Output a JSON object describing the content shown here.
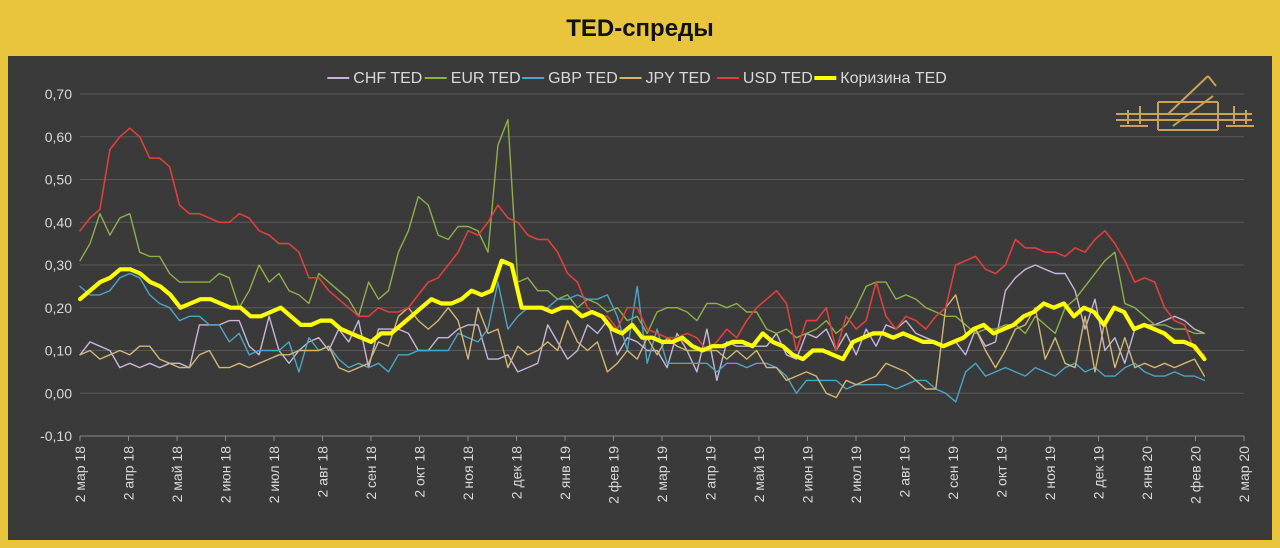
{
  "title": "TED-спреды",
  "colors": {
    "background": "#e8c53c",
    "plot_bg": "#3a3a3a",
    "axis_text": "#d9d9d9",
    "grid": "#5a5a5a"
  },
  "logo": {
    "icon": "castle-ornament-logo",
    "color": "#c9a25a"
  },
  "chart_data": {
    "type": "line",
    "title": "TED-спреды",
    "ylim": [
      -0.1,
      0.7
    ],
    "yticks": [
      "-0,10",
      "0,00",
      "0,10",
      "0,20",
      "0,30",
      "0,40",
      "0,50",
      "0,60",
      "0,70"
    ],
    "ytick_values": [
      -0.1,
      0,
      0.1,
      0.2,
      0.3,
      0.4,
      0.5,
      0.6,
      0.7
    ],
    "xticks": [
      "2 мар 18",
      "2 апр 18",
      "2 май 18",
      "2 июн 18",
      "2 июл 18",
      "2 авг 18",
      "2 сен 18",
      "2 окт 18",
      "2 ноя 18",
      "2 дек 18",
      "2 янв 19",
      "2 фев 19",
      "2 мар 19",
      "2 апр 19",
      "2 май 19",
      "2 июн 19",
      "2 июл 19",
      "2 авг 19",
      "2 сен 19",
      "2 окт 19",
      "2 ноя 19",
      "2 дек 19",
      "2 янв 20",
      "2 фев 20",
      "2 мар 20"
    ],
    "legend_position": "top",
    "grid": true,
    "series": [
      {
        "name": "CHF TED",
        "color": "#c7b6d8",
        "width": 1.4,
        "values": [
          0.09,
          0.12,
          0.11,
          0.1,
          0.06,
          0.07,
          0.06,
          0.07,
          0.06,
          0.07,
          0.07,
          0.06,
          0.16,
          0.16,
          0.16,
          0.17,
          0.17,
          0.11,
          0.09,
          0.18,
          0.1,
          0.07,
          0.1,
          0.12,
          0.13,
          0.1,
          0.15,
          0.12,
          0.17,
          0.06,
          0.15,
          0.15,
          0.15,
          0.14,
          0.1,
          0.1,
          0.13,
          0.13,
          0.15,
          0.16,
          0.16,
          0.08,
          0.08,
          0.09,
          0.05,
          0.06,
          0.07,
          0.16,
          0.12,
          0.08,
          0.1,
          0.16,
          0.14,
          0.17,
          0.09,
          0.13,
          0.12,
          0.1,
          0.1,
          0.06,
          0.14,
          0.1,
          0.05,
          0.15,
          0.03,
          0.12,
          0.11,
          0.11,
          0.11,
          0.11,
          0.14,
          0.09,
          0.08,
          0.14,
          0.13,
          0.15,
          0.1,
          0.14,
          0.09,
          0.15,
          0.11,
          0.16,
          0.15,
          0.17,
          0.14,
          0.13,
          0.12,
          0.11,
          0.12,
          0.09,
          0.15,
          0.11,
          0.12,
          0.24,
          0.27,
          0.29,
          0.3,
          0.29,
          0.28,
          0.28,
          0.24,
          0.15,
          0.22,
          0.1,
          0.13,
          0.07,
          0.15,
          0.16,
          0.16,
          0.17,
          0.18,
          0.17,
          0.15,
          0.14
        ]
      },
      {
        "name": "EUR TED",
        "color": "#8db04a",
        "width": 1.4,
        "values": [
          0.31,
          0.35,
          0.42,
          0.37,
          0.41,
          0.42,
          0.33,
          0.32,
          0.32,
          0.28,
          0.26,
          0.26,
          0.26,
          0.26,
          0.28,
          0.27,
          0.2,
          0.24,
          0.3,
          0.26,
          0.28,
          0.24,
          0.23,
          0.21,
          0.28,
          0.26,
          0.24,
          0.22,
          0.18,
          0.26,
          0.22,
          0.24,
          0.33,
          0.38,
          0.46,
          0.44,
          0.37,
          0.36,
          0.39,
          0.39,
          0.38,
          0.33,
          0.58,
          0.64,
          0.26,
          0.27,
          0.24,
          0.24,
          0.22,
          0.23,
          0.2,
          0.22,
          0.21,
          0.19,
          0.2,
          0.17,
          0.18,
          0.14,
          0.19,
          0.2,
          0.2,
          0.19,
          0.17,
          0.21,
          0.21,
          0.2,
          0.21,
          0.19,
          0.19,
          0.15,
          0.14,
          0.15,
          0.13,
          0.14,
          0.15,
          0.17,
          0.14,
          0.16,
          0.2,
          0.25,
          0.26,
          0.26,
          0.22,
          0.23,
          0.22,
          0.2,
          0.19,
          0.18,
          0.18,
          0.16,
          0.14,
          0.15,
          0.15,
          0.16,
          0.16,
          0.14,
          0.18,
          0.16,
          0.14,
          0.2,
          0.22,
          0.25,
          0.28,
          0.31,
          0.33,
          0.21,
          0.2,
          0.18,
          0.16,
          0.16,
          0.15,
          0.15,
          0.14,
          0.14
        ]
      },
      {
        "name": "GBP TED",
        "color": "#4ea4c4",
        "width": 1.4,
        "values": [
          0.25,
          0.23,
          0.23,
          0.24,
          0.27,
          0.28,
          0.27,
          0.23,
          0.21,
          0.2,
          0.17,
          0.18,
          0.18,
          0.16,
          0.16,
          0.12,
          0.14,
          0.09,
          0.1,
          0.1,
          0.1,
          0.12,
          0.05,
          0.13,
          0.1,
          0.11,
          0.08,
          0.06,
          0.07,
          0.06,
          0.07,
          0.05,
          0.09,
          0.09,
          0.1,
          0.1,
          0.1,
          0.1,
          0.14,
          0.13,
          0.12,
          0.15,
          0.26,
          0.15,
          0.18,
          0.2,
          0.2,
          0.2,
          0.22,
          0.22,
          0.23,
          0.22,
          0.22,
          0.23,
          0.18,
          0.1,
          0.25,
          0.07,
          0.15,
          0.07,
          0.07,
          0.07,
          0.07,
          0.07,
          0.05,
          0.07,
          0.07,
          0.06,
          0.07,
          0.07,
          0.06,
          0.04,
          0.0,
          0.03,
          0.03,
          0.03,
          0.03,
          0.01,
          0.02,
          0.02,
          0.02,
          0.02,
          0.01,
          0.02,
          0.03,
          0.03,
          0.01,
          0.0,
          -0.02,
          0.05,
          0.07,
          0.04,
          0.05,
          0.06,
          0.05,
          0.04,
          0.06,
          0.05,
          0.04,
          0.06,
          0.07,
          0.05,
          0.06,
          0.04,
          0.04,
          0.06,
          0.07,
          0.05,
          0.04,
          0.04,
          0.05,
          0.04,
          0.04,
          0.03
        ]
      },
      {
        "name": "JPY TED",
        "color": "#d2b774",
        "width": 1.4,
        "values": [
          0.09,
          0.1,
          0.08,
          0.09,
          0.1,
          0.09,
          0.11,
          0.11,
          0.08,
          0.07,
          0.06,
          0.06,
          0.09,
          0.1,
          0.06,
          0.06,
          0.07,
          0.06,
          0.07,
          0.08,
          0.09,
          0.09,
          0.1,
          0.1,
          0.1,
          0.11,
          0.06,
          0.05,
          0.06,
          0.07,
          0.12,
          0.11,
          0.18,
          0.2,
          0.17,
          0.15,
          0.17,
          0.2,
          0.17,
          0.08,
          0.2,
          0.14,
          0.15,
          0.06,
          0.11,
          0.09,
          0.1,
          0.12,
          0.1,
          0.17,
          0.12,
          0.1,
          0.12,
          0.05,
          0.07,
          0.1,
          0.08,
          0.13,
          0.09,
          0.13,
          0.11,
          0.1,
          0.1,
          0.1,
          0.1,
          0.08,
          0.1,
          0.08,
          0.1,
          0.06,
          0.06,
          0.03,
          0.04,
          0.05,
          0.04,
          0.0,
          -0.01,
          0.03,
          0.02,
          0.03,
          0.04,
          0.07,
          0.06,
          0.05,
          0.03,
          0.01,
          0.01,
          0.2,
          0.23,
          0.14,
          0.15,
          0.1,
          0.06,
          0.1,
          0.15,
          0.16,
          0.2,
          0.08,
          0.13,
          0.07,
          0.06,
          0.18,
          0.05,
          0.17,
          0.06,
          0.13,
          0.06,
          0.07,
          0.06,
          0.07,
          0.06,
          0.07,
          0.08,
          0.04
        ]
      },
      {
        "name": "USD TED",
        "color": "#e0403a",
        "width": 1.6,
        "values": [
          0.38,
          0.41,
          0.43,
          0.57,
          0.6,
          0.62,
          0.6,
          0.55,
          0.55,
          0.53,
          0.44,
          0.42,
          0.42,
          0.41,
          0.4,
          0.4,
          0.42,
          0.41,
          0.38,
          0.37,
          0.35,
          0.35,
          0.33,
          0.27,
          0.27,
          0.24,
          0.22,
          0.2,
          0.18,
          0.18,
          0.2,
          0.19,
          0.19,
          0.2,
          0.23,
          0.26,
          0.27,
          0.3,
          0.33,
          0.38,
          0.37,
          0.4,
          0.44,
          0.41,
          0.4,
          0.37,
          0.36,
          0.36,
          0.33,
          0.28,
          0.26,
          0.2,
          0.18,
          0.18,
          0.15,
          0.2,
          0.2,
          0.15,
          0.14,
          0.13,
          0.13,
          0.14,
          0.13,
          0.1,
          0.12,
          0.15,
          0.13,
          0.17,
          0.2,
          0.22,
          0.24,
          0.21,
          0.1,
          0.17,
          0.17,
          0.2,
          0.1,
          0.18,
          0.15,
          0.17,
          0.26,
          0.18,
          0.15,
          0.18,
          0.17,
          0.15,
          0.18,
          0.2,
          0.3,
          0.31,
          0.32,
          0.29,
          0.28,
          0.3,
          0.36,
          0.34,
          0.34,
          0.33,
          0.33,
          0.32,
          0.34,
          0.33,
          0.36,
          0.38,
          0.35,
          0.31,
          0.26,
          0.27,
          0.26,
          0.2,
          0.17,
          0.16,
          0.1,
          0.09
        ]
      },
      {
        "name": "Коризина TED",
        "color": "#ffff00",
        "width": 4.2,
        "values": [
          0.22,
          0.24,
          0.26,
          0.27,
          0.29,
          0.29,
          0.28,
          0.26,
          0.25,
          0.23,
          0.2,
          0.21,
          0.22,
          0.22,
          0.21,
          0.2,
          0.2,
          0.18,
          0.18,
          0.19,
          0.2,
          0.18,
          0.16,
          0.16,
          0.17,
          0.17,
          0.15,
          0.14,
          0.13,
          0.12,
          0.14,
          0.14,
          0.16,
          0.18,
          0.2,
          0.22,
          0.21,
          0.21,
          0.22,
          0.24,
          0.23,
          0.24,
          0.31,
          0.3,
          0.2,
          0.2,
          0.2,
          0.19,
          0.2,
          0.2,
          0.18,
          0.19,
          0.18,
          0.15,
          0.14,
          0.16,
          0.13,
          0.13,
          0.12,
          0.12,
          0.13,
          0.11,
          0.1,
          0.11,
          0.11,
          0.12,
          0.12,
          0.11,
          0.14,
          0.12,
          0.11,
          0.09,
          0.08,
          0.1,
          0.1,
          0.09,
          0.08,
          0.12,
          0.13,
          0.14,
          0.14,
          0.13,
          0.14,
          0.13,
          0.12,
          0.12,
          0.11,
          0.12,
          0.13,
          0.15,
          0.16,
          0.14,
          0.15,
          0.16,
          0.18,
          0.19,
          0.21,
          0.2,
          0.21,
          0.18,
          0.2,
          0.19,
          0.16,
          0.2,
          0.19,
          0.15,
          0.16,
          0.15,
          0.14,
          0.12,
          0.12,
          0.11,
          0.08
        ]
      }
    ]
  }
}
